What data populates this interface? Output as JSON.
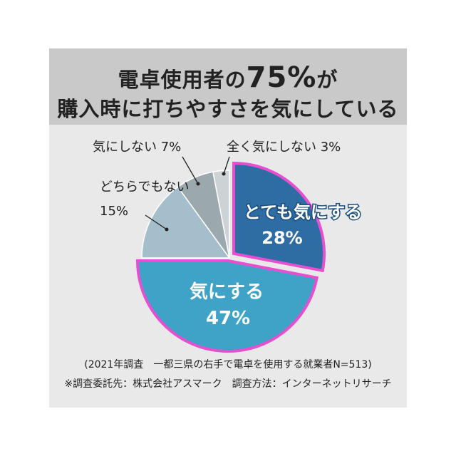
{
  "title": {
    "line1_prefix": "電卓使用者の",
    "line1_highlight": "75%",
    "line1_suffix": "が",
    "line2": "購入時に打ちやすさを気にしている"
  },
  "chart_data": {
    "type": "pie",
    "start_angle_deg": 0,
    "direction": "clockwise",
    "slices": [
      {
        "label": "とても気にする",
        "value": 28,
        "value_label": "28%",
        "color": "#2e6da4",
        "highlight": true,
        "label_position": "inside"
      },
      {
        "label": "気にする",
        "value": 47,
        "value_label": "47%",
        "color": "#3ea3c7",
        "highlight": true,
        "label_position": "inside"
      },
      {
        "label": "どちらでもない",
        "value": 15,
        "value_label": "15%",
        "color": "#a4bfcb",
        "highlight": false,
        "label_position": "outside"
      },
      {
        "label": "気にしない",
        "value": 7,
        "value_label": "7%",
        "color": "#9ba8ae",
        "highlight": false,
        "label_position": "outside"
      },
      {
        "label": "全く気にしない",
        "value": 3,
        "value_label": "3%",
        "color": "#cdd2d5",
        "highlight": false,
        "label_position": "outside"
      }
    ],
    "highlight_border_color": "#e64fd0"
  },
  "footnotes": {
    "line1": "(2021年調査　一都三県の右手で電卓を使用する就業者N=513)",
    "line2": "※調査委託先：株式会社アスマーク　調査方法：インターネットリサーチ"
  }
}
